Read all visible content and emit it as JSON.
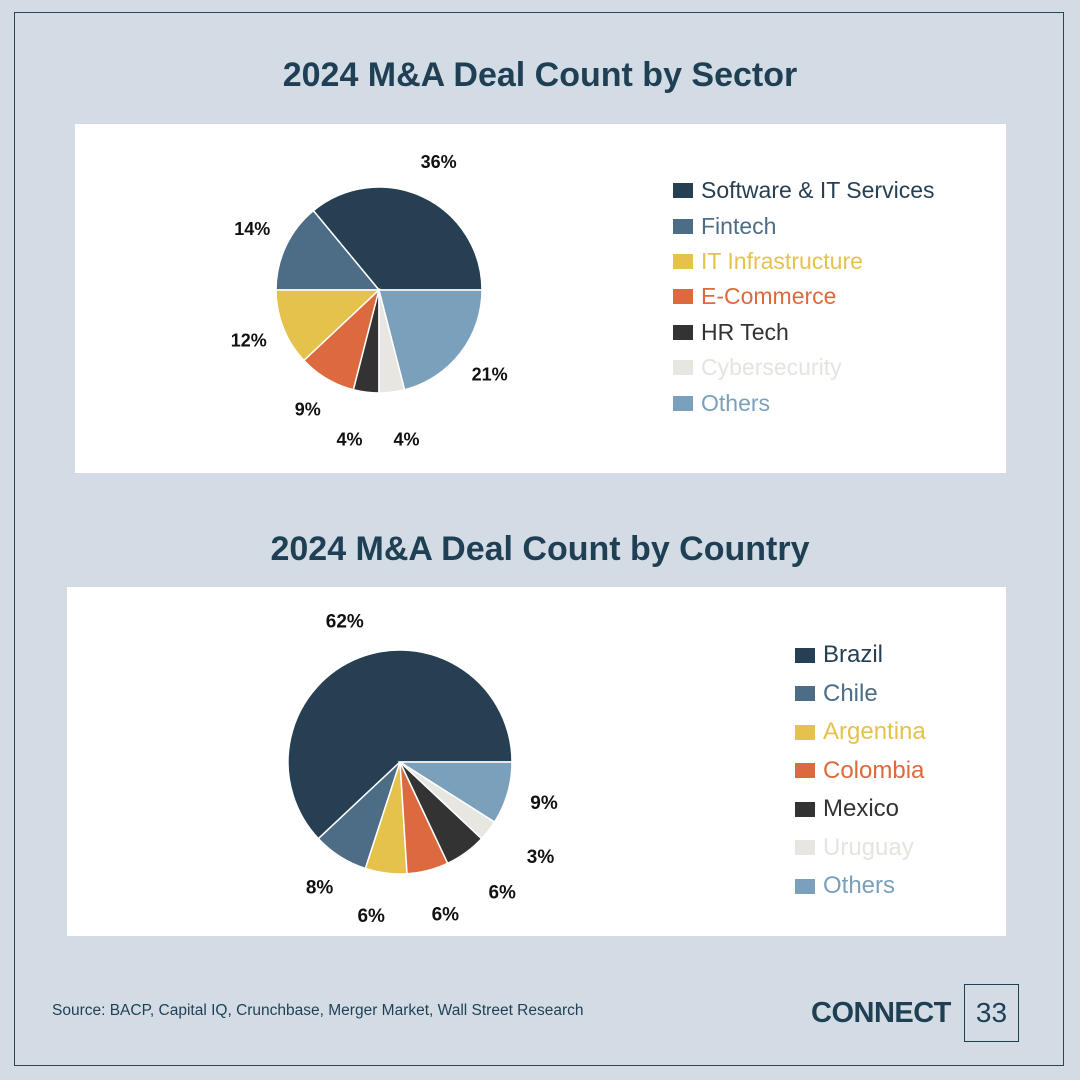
{
  "chart_data": [
    {
      "type": "pie",
      "title": "2024 M&A Deal Count by Sector",
      "categories": [
        "Software & IT Services",
        "Fintech",
        "IT Infrastructure",
        "E-Commerce",
        "HR Tech",
        "Cybersecurity",
        "Others"
      ],
      "values": [
        36,
        14,
        12,
        9,
        4,
        4,
        21
      ],
      "labels": [
        "36%",
        "14%",
        "12%",
        "9%",
        "4%",
        "4%",
        "21%"
      ],
      "colors": [
        "#263f53",
        "#4d6c86",
        "#e5c24c",
        "#dd6a3e",
        "#333333",
        "#e8e6e0",
        "#7aa0bc"
      ],
      "legend_position": "right"
    },
    {
      "type": "pie",
      "title": "2024 M&A Deal Count by Country",
      "categories": [
        "Brazil",
        "Chile",
        "Argentina",
        "Colombia",
        "Mexico",
        "Uruguay",
        "Others"
      ],
      "values": [
        62,
        8,
        6,
        6,
        6,
        3,
        9
      ],
      "labels": [
        "62%",
        "8%",
        "6%",
        "6%",
        "6%",
        "3%",
        "9%"
      ],
      "colors": [
        "#263f53",
        "#4d6c86",
        "#e5c24c",
        "#dd6a3e",
        "#333333",
        "#e8e6e0",
        "#7aa0bc"
      ],
      "legend_position": "right"
    }
  ],
  "footer": {
    "source": "Source: BACP, Capital IQ, Crunchbase, Merger Market, Wall Street Research",
    "logo": "CONNECT",
    "page_number": "33"
  }
}
